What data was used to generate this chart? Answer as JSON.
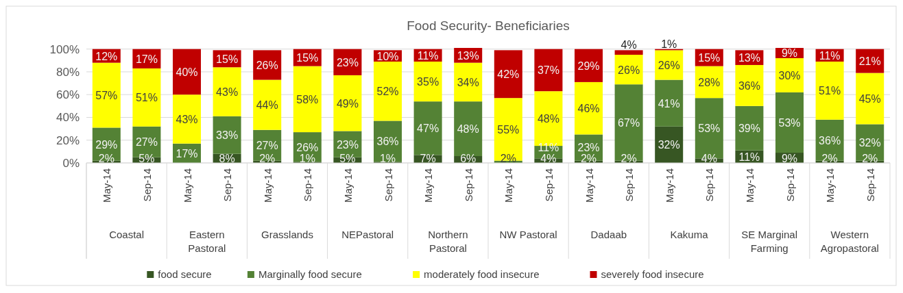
{
  "chart_data": {
    "type": "bar",
    "title": "Food Security-  Beneficiaries",
    "stacked": true,
    "grid": "y",
    "legend": "bottom",
    "categories": [
      "May-14",
      "Sep-14",
      "May-14",
      "Sep-14",
      "May-14",
      "Sep-14",
      "May-14",
      "Sep-14",
      "May-14",
      "Sep-14",
      "May-14",
      "Sep-14",
      "May-14",
      "Sep-14",
      "May-14",
      "Sep-14",
      "May-14",
      "Sep-14",
      "May-14",
      "Sep-14"
    ],
    "annotations": [
      "Coastal",
      "Eastern Pastoral",
      "Grasslands",
      "NEPastoral",
      "Northern Pastoral",
      "NW Pastoral",
      "Dadaab",
      "Kakuma",
      "SE Marginal Farming",
      "Western Agropastoral"
    ],
    "ylim": [
      0,
      101
    ],
    "yticks": [
      {
        "value": 0,
        "label": "0%"
      },
      {
        "value": 20,
        "label": "20%"
      },
      {
        "value": 40,
        "label": "40%"
      },
      {
        "value": 60,
        "label": "60%"
      },
      {
        "value": 80,
        "label": "80%"
      },
      {
        "value": 100,
        "label": "100%"
      }
    ],
    "series": [
      {
        "name": "food secure",
        "color": "#375623",
        "values": [
          2,
          5,
          0,
          8,
          2,
          1,
          5,
          1,
          7,
          6,
          0,
          4,
          2,
          2,
          32,
          4,
          11,
          9,
          2,
          2
        ],
        "value_labels": [
          "2%",
          "5%",
          null,
          "8%",
          "2%",
          "1%",
          "5%",
          "1%",
          "7%",
          "6%",
          null,
          "4%",
          "2%",
          "2%",
          "32%",
          "4%",
          "11%",
          "9%",
          "2%",
          "2%"
        ]
      },
      {
        "name": "Marginally food secure",
        "color": "#548235",
        "values": [
          29,
          27,
          17,
          33,
          27,
          26,
          23,
          36,
          47,
          48,
          2,
          11,
          23,
          67,
          41,
          53,
          39,
          53,
          36,
          32
        ],
        "value_labels": [
          "29%",
          "27%",
          "17%",
          "33%",
          "27%",
          "26%",
          "23%",
          "36%",
          "47%",
          "48%",
          "2%",
          "11%",
          "23%",
          "67%",
          "41%",
          "53%",
          "39%",
          "53%",
          "36%",
          "32%"
        ]
      },
      {
        "name": "moderately food insecure",
        "color": "#ffff00",
        "values": [
          57,
          51,
          43,
          43,
          44,
          58,
          49,
          52,
          35,
          34,
          55,
          48,
          46,
          26,
          26,
          28,
          36,
          30,
          51,
          45
        ],
        "value_labels": [
          "57%",
          "51%",
          "43%",
          "43%",
          "44%",
          "58%",
          "49%",
          "52%",
          "35%",
          "34%",
          "55%",
          "48%",
          "46%",
          "26%",
          "26%",
          "28%",
          "36%",
          "30%",
          "51%",
          "45%"
        ]
      },
      {
        "name": "severely food insecure",
        "color": "#c00000",
        "values": [
          12,
          17,
          40,
          15,
          26,
          15,
          23,
          10,
          11,
          13,
          42,
          37,
          29,
          4,
          1,
          15,
          13,
          9,
          11,
          21
        ],
        "value_labels": [
          "12%",
          "17%",
          "40%",
          "15%",
          "26%",
          "15%",
          "23%",
          "10%",
          "11%",
          "13%",
          "42%",
          "37%",
          "29%",
          "4%",
          "1%",
          "15%",
          "13%",
          "9%",
          "11%",
          "21%"
        ]
      }
    ]
  }
}
